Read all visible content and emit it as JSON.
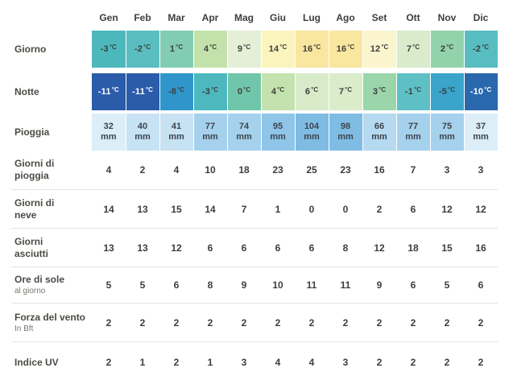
{
  "table": {
    "months": [
      "Gen",
      "Feb",
      "Mar",
      "Apr",
      "Mag",
      "Giu",
      "Lug",
      "Ago",
      "Set",
      "Ott",
      "Nov",
      "Dic"
    ],
    "rows": {
      "day": {
        "label": "Giorno",
        "unit": "°C",
        "values": [
          -3,
          -2,
          1,
          4,
          9,
          14,
          16,
          16,
          12,
          7,
          2,
          -2
        ],
        "colors": [
          "#4cb8bc",
          "#5abec0",
          "#82ccb3",
          "#c3e2ab",
          "#e4efd8",
          "#fbf4bd",
          "#f9e7a0",
          "#f9e7a0",
          "#faf5cd",
          "#d9ebcb",
          "#93d3ab",
          "#58bdc1"
        ]
      },
      "night": {
        "label": "Notte",
        "unit": "°C",
        "values": [
          -11,
          -11,
          -8,
          -3,
          0,
          4,
          6,
          7,
          3,
          -1,
          -5,
          -10
        ],
        "colors": [
          "#2a5caa",
          "#2a5caa",
          "#3095ca",
          "#4db9bf",
          "#70c6aa",
          "#c3e2ad",
          "#d8ebc8",
          "#daecca",
          "#9ad6aa",
          "#5ec0c4",
          "#3aa4cb",
          "#2a68ae"
        ],
        "text_colors": [
          "#ffffff",
          "#ffffff",
          null,
          null,
          null,
          null,
          null,
          null,
          null,
          null,
          null,
          "#ffffff"
        ]
      },
      "rain": {
        "label": "Pioggia",
        "unit": "mm",
        "values": [
          32,
          40,
          41,
          77,
          74,
          95,
          104,
          98,
          66,
          77,
          75,
          37
        ],
        "colors": [
          "#dceef8",
          "#c7e2f3",
          "#c7e2f3",
          "#a6d1ed",
          "#a6d1ed",
          "#8ec5e8",
          "#7fbce4",
          "#7fbce4",
          "#b5d9f0",
          "#a6d1ed",
          "#a6d1ed",
          "#dceef8"
        ]
      },
      "rain_days": {
        "label": "Giorni di",
        "label2": "pioggia",
        "values": [
          4,
          2,
          4,
          10,
          18,
          23,
          25,
          23,
          16,
          7,
          3,
          3
        ]
      },
      "snow_days": {
        "label": "Giorni di",
        "label2": "neve",
        "values": [
          14,
          13,
          15,
          14,
          7,
          1,
          0,
          0,
          2,
          6,
          12,
          12
        ]
      },
      "dry_days": {
        "label": "Giorni",
        "label2": "asciutti",
        "values": [
          13,
          13,
          12,
          6,
          6,
          6,
          6,
          8,
          12,
          18,
          15,
          16
        ]
      },
      "sun_hours": {
        "label": "Ore di sole",
        "sublabel": "al giorno",
        "values": [
          5,
          5,
          6,
          8,
          9,
          10,
          11,
          11,
          9,
          6,
          5,
          6
        ]
      },
      "wind": {
        "label": "Forza del vento",
        "sublabel": "In Bft",
        "values": [
          2,
          2,
          2,
          2,
          2,
          2,
          2,
          2,
          2,
          2,
          2,
          2
        ]
      },
      "uv": {
        "label": "Indice UV",
        "values": [
          2,
          1,
          2,
          1,
          3,
          4,
          4,
          3,
          2,
          2,
          2,
          2
        ]
      }
    }
  },
  "chart_data": {
    "type": "table",
    "categories": [
      "Gen",
      "Feb",
      "Mar",
      "Apr",
      "Mag",
      "Giu",
      "Lug",
      "Ago",
      "Set",
      "Ott",
      "Nov",
      "Dic"
    ],
    "series": [
      {
        "name": "Giorno (°C)",
        "values": [
          -3,
          -2,
          1,
          4,
          9,
          14,
          16,
          16,
          12,
          7,
          2,
          -2
        ]
      },
      {
        "name": "Notte (°C)",
        "values": [
          -11,
          -11,
          -8,
          -3,
          0,
          4,
          6,
          7,
          3,
          -1,
          -5,
          -10
        ]
      },
      {
        "name": "Pioggia (mm)",
        "values": [
          32,
          40,
          41,
          77,
          74,
          95,
          104,
          98,
          66,
          77,
          75,
          37
        ]
      },
      {
        "name": "Giorni di pioggia",
        "values": [
          4,
          2,
          4,
          10,
          18,
          23,
          25,
          23,
          16,
          7,
          3,
          3
        ]
      },
      {
        "name": "Giorni di neve",
        "values": [
          14,
          13,
          15,
          14,
          7,
          1,
          0,
          0,
          2,
          6,
          12,
          12
        ]
      },
      {
        "name": "Giorni asciutti",
        "values": [
          13,
          13,
          12,
          6,
          6,
          6,
          6,
          8,
          12,
          18,
          15,
          16
        ]
      },
      {
        "name": "Ore di sole al giorno",
        "values": [
          5,
          5,
          6,
          8,
          9,
          10,
          11,
          11,
          9,
          6,
          5,
          6
        ]
      },
      {
        "name": "Forza del vento in Bft",
        "values": [
          2,
          2,
          2,
          2,
          2,
          2,
          2,
          2,
          2,
          2,
          2,
          2
        ]
      },
      {
        "name": "Indice UV",
        "values": [
          2,
          1,
          2,
          1,
          3,
          4,
          4,
          3,
          2,
          2,
          2,
          2
        ]
      }
    ],
    "title": "",
    "legend": "row labels in left column",
    "notes": "heatmap coloring on temperature and rain rows"
  }
}
